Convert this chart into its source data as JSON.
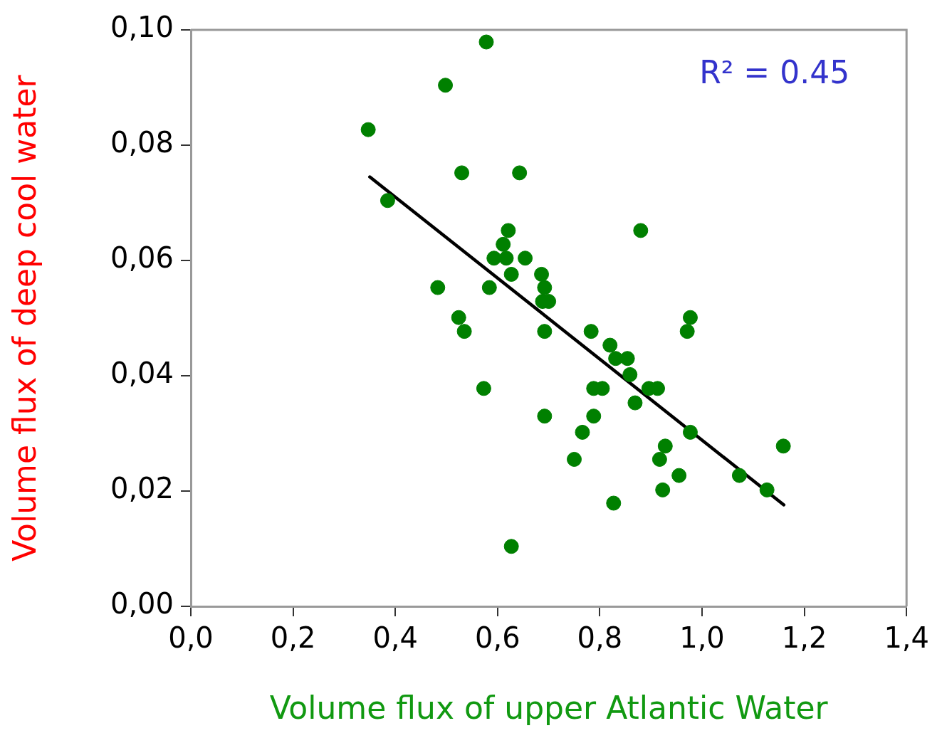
{
  "chart_data": {
    "type": "scatter",
    "xlabel": "Volume flux of upper Atlantic Water",
    "ylabel": "Volume flux of deep cool water",
    "xlim": [
      0,
      1.4
    ],
    "ylim": [
      0,
      0.1
    ],
    "xticks": [
      {
        "value": 0,
        "label": "0,0"
      },
      {
        "value": 0.2,
        "label": "0,2"
      },
      {
        "value": 0.4,
        "label": "0,4"
      },
      {
        "value": 0.6,
        "label": "0,6"
      },
      {
        "value": 0.8,
        "label": "0,8"
      },
      {
        "value": 1,
        "label": "1,0"
      },
      {
        "value": 1.2,
        "label": "1,2"
      },
      {
        "value": 1.4,
        "label": "1,4"
      }
    ],
    "yticks": [
      {
        "value": 0,
        "label": "0,00"
      },
      {
        "value": 0.02,
        "label": "0,02"
      },
      {
        "value": 0.04,
        "label": "0,04"
      },
      {
        "value": 0.06,
        "label": "0,06"
      },
      {
        "value": 0.08,
        "label": "0,08"
      },
      {
        "value": 0.1,
        "label": "0,10"
      }
    ],
    "legend": false,
    "annotations": [
      "R² = 0.45"
    ],
    "series": [
      {
        "type": "scatter",
        "marker": "circle",
        "color": "#008000",
        "x": [
          0.347,
          0.578,
          0.498,
          0.385,
          0.53,
          0.643,
          0.621,
          0.611,
          0.593,
          0.617,
          0.654,
          0.627,
          0.686,
          0.483,
          0.584,
          0.692,
          0.688,
          0.7,
          0.524,
          0.535,
          0.692,
          0.783,
          0.977,
          0.971,
          0.82,
          0.831,
          0.854,
          0.859,
          0.573,
          0.788,
          0.805,
          0.896,
          0.913,
          0.869,
          0.692,
          0.788,
          0.766,
          0.977,
          0.75,
          0.917,
          0.928,
          1.159,
          0.955,
          1.073,
          1.127,
          0.923,
          0.827,
          0.627,
          0.88
        ],
        "values": [
          0.0827,
          0.0979,
          0.0904,
          0.0704,
          0.0752,
          0.0752,
          0.0652,
          0.0628,
          0.0604,
          0.0604,
          0.0604,
          0.0576,
          0.0576,
          0.0553,
          0.0553,
          0.0553,
          0.0529,
          0.0529,
          0.0501,
          0.0477,
          0.0477,
          0.0477,
          0.0501,
          0.0477,
          0.0453,
          0.043,
          0.043,
          0.0402,
          0.0378,
          0.0378,
          0.0378,
          0.0378,
          0.0378,
          0.0353,
          0.033,
          0.033,
          0.0302,
          0.0302,
          0.0255,
          0.0255,
          0.0278,
          0.0278,
          0.0227,
          0.0227,
          0.0202,
          0.0202,
          0.0179,
          0.0104,
          0.0652
        ]
      },
      {
        "type": "line",
        "marker": "none",
        "color": "#000000",
        "line_style": "solid",
        "x": [
          0.35,
          1.16
        ],
        "values": [
          0.0745,
          0.0176
        ]
      }
    ]
  }
}
